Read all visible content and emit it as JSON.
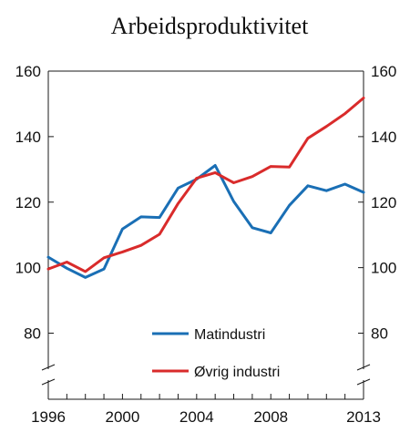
{
  "chart_data": {
    "type": "line",
    "title": "Arbeidsproduktivitet",
    "xlabel": "",
    "ylabel": "",
    "x": [
      1996,
      1997,
      1998,
      1999,
      2000,
      2001,
      2002,
      2003,
      2004,
      2005,
      2006,
      2007,
      2008,
      2009,
      2010,
      2011,
      2012,
      2013
    ],
    "x_tick_labels": [
      "1996",
      "2000",
      "2004",
      "2008",
      "2013"
    ],
    "y_ticks": [
      80,
      100,
      120,
      140,
      160
    ],
    "y_tick_labels": [
      "80",
      "100",
      "120",
      "140",
      "160"
    ],
    "ylim": [
      68,
      160
    ],
    "axis_break": true,
    "grid": false,
    "legend_position": "bottom-center",
    "series": [
      {
        "name": "Matindustri",
        "color": "#1a6fb5",
        "values": [
          103.2,
          99.8,
          97.0,
          99.6,
          111.8,
          115.5,
          115.3,
          124.3,
          127.0,
          131.2,
          120.2,
          112.2,
          110.6,
          119.0,
          125.0,
          123.5,
          125.5,
          123.0
        ]
      },
      {
        "name": "Øvrig industri",
        "color": "#d92b2b",
        "values": [
          99.6,
          101.7,
          98.8,
          103.0,
          104.8,
          106.8,
          110.2,
          119.6,
          127.3,
          129.0,
          125.9,
          127.8,
          130.9,
          130.7,
          139.5,
          143.1,
          147.0,
          151.8
        ]
      }
    ]
  }
}
